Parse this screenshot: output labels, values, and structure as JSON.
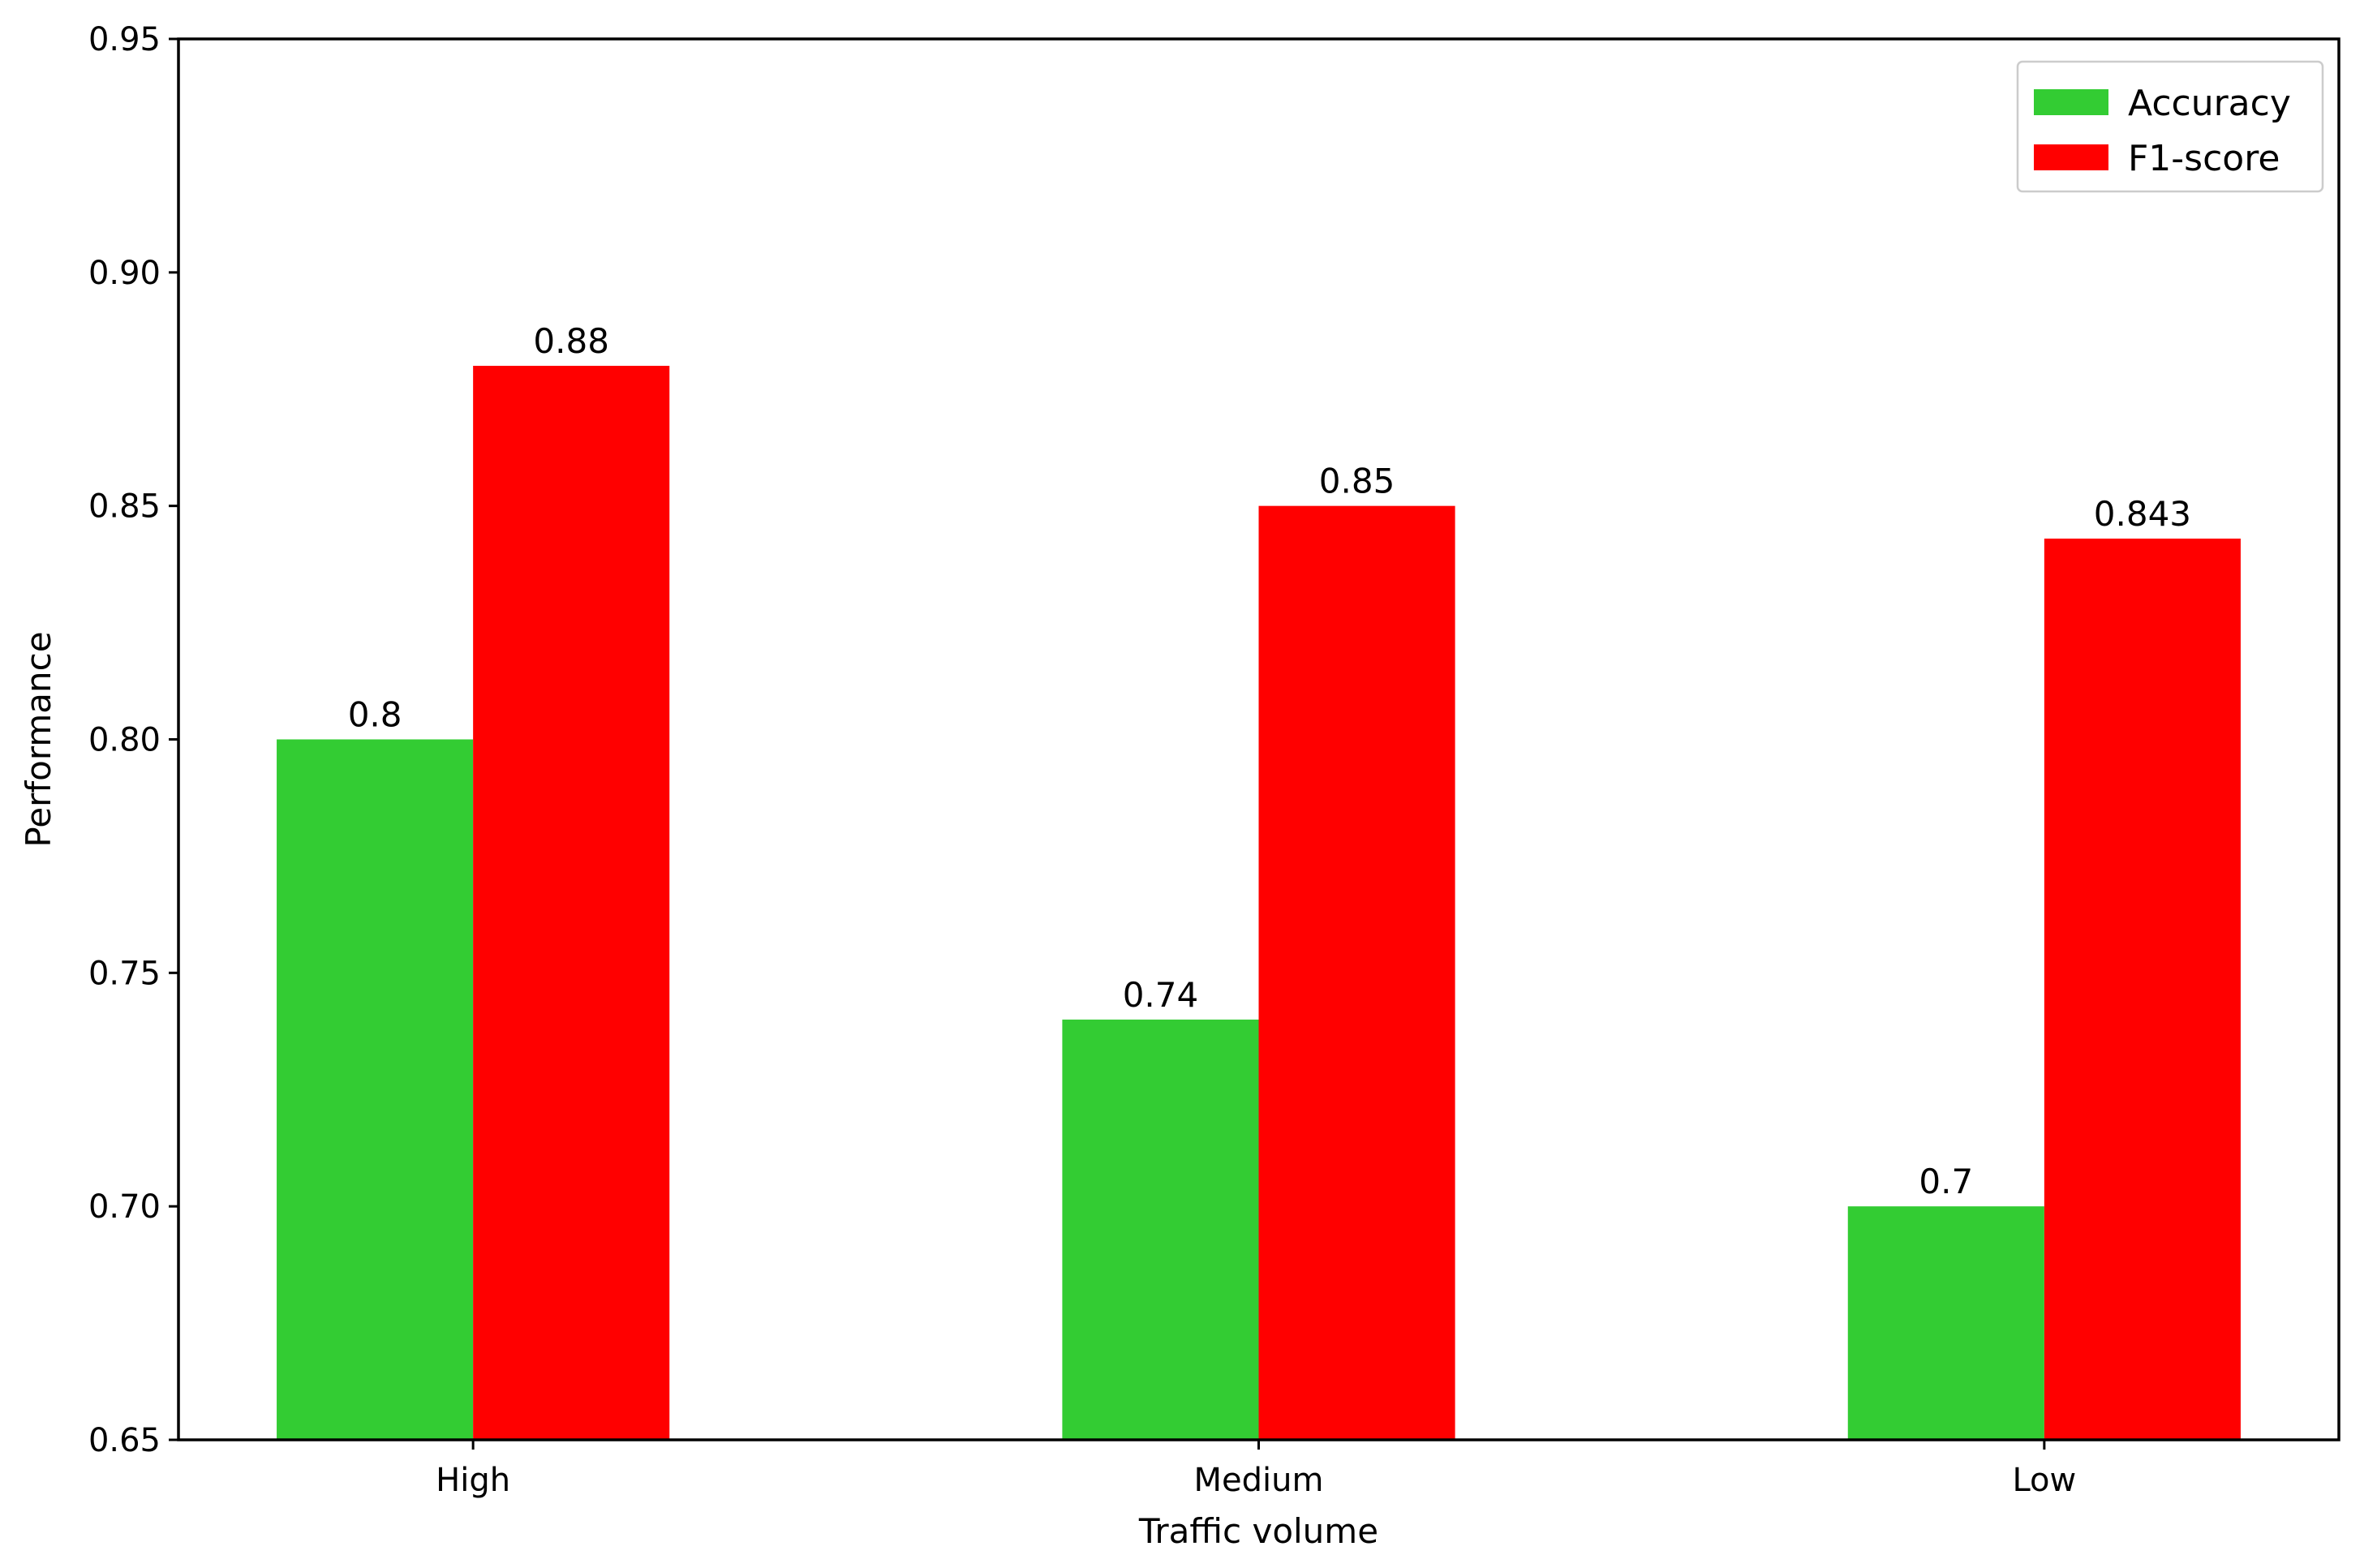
{
  "chart_data": {
    "type": "bar",
    "title": "",
    "xlabel": "Traffic volume",
    "ylabel": "Performance",
    "categories": [
      "High",
      "Medium",
      "Low"
    ],
    "series": [
      {
        "name": "Accuracy",
        "color": "#33cc33",
        "values": [
          0.8,
          0.74,
          0.7
        ],
        "labels": [
          "0.8",
          "0.74",
          "0.7"
        ]
      },
      {
        "name": "F1-score",
        "color": "#ff0000",
        "values": [
          0.88,
          0.85,
          0.843
        ],
        "labels": [
          "0.88",
          "0.85",
          "0.843"
        ]
      }
    ],
    "ylim": [
      0.65,
      0.95
    ],
    "yticks": [
      0.65,
      0.7,
      0.75,
      0.8,
      0.85,
      0.9,
      0.95
    ],
    "ytick_labels": [
      "0.65",
      "0.70",
      "0.75",
      "0.80",
      "0.85",
      "0.90",
      "0.95"
    ],
    "grid": false,
    "legend_position": "top-right"
  }
}
